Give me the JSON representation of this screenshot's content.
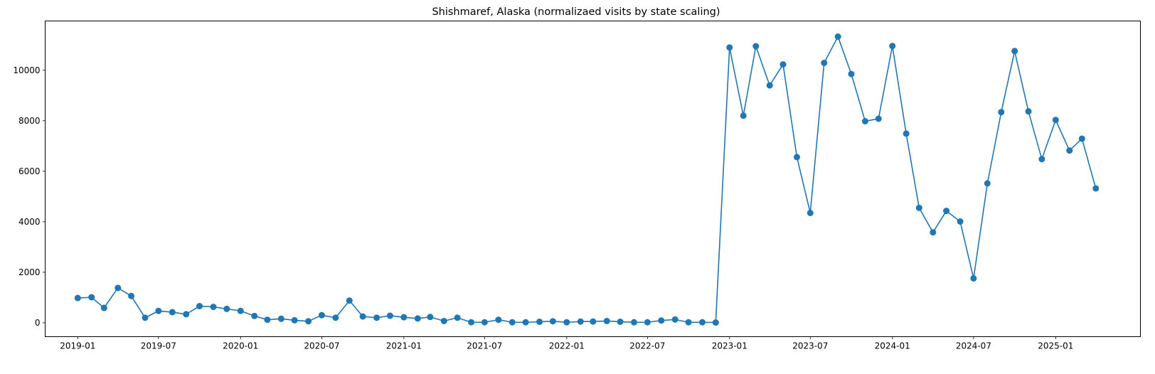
{
  "chart_data": {
    "type": "line",
    "title": "Shishmaref, Alaska (normalizaed visits by state scaling)",
    "xlabel": "",
    "ylabel": "",
    "x_ticks": [
      "2019-01",
      "2019-07",
      "2020-01",
      "2020-07",
      "2021-01",
      "2021-07",
      "2022-01",
      "2022-07",
      "2023-01",
      "2023-07",
      "2024-01",
      "2024-07",
      "2025-01"
    ],
    "y_ticks": [
      0,
      2000,
      4000,
      6000,
      8000,
      10000
    ],
    "ylim": [
      -550,
      11950
    ],
    "xlim": [
      "2018-10-20",
      "2025-07-10"
    ],
    "grid": false,
    "marker": "circle",
    "series": [
      {
        "color": "#1f77b4",
        "x": [
          "2019-01",
          "2019-02",
          "2019-03",
          "2019-04",
          "2019-05",
          "2019-06",
          "2019-07",
          "2019-08",
          "2019-09",
          "2019-10",
          "2019-11",
          "2019-12",
          "2020-01",
          "2020-02",
          "2020-03",
          "2020-04",
          "2020-05",
          "2020-06",
          "2020-07",
          "2020-08",
          "2020-09",
          "2020-10",
          "2020-11",
          "2020-12",
          "2021-01",
          "2021-02",
          "2021-03",
          "2021-04",
          "2021-05",
          "2021-06",
          "2021-07",
          "2021-08",
          "2021-09",
          "2021-10",
          "2021-11",
          "2021-12",
          "2022-01",
          "2022-02",
          "2022-03",
          "2022-04",
          "2022-05",
          "2022-06",
          "2022-07",
          "2022-08",
          "2022-09",
          "2022-10",
          "2022-11",
          "2022-12",
          "2023-01",
          "2023-02",
          "2023-03",
          "2023-04",
          "2023-05",
          "2023-06",
          "2023-07",
          "2023-08",
          "2023-09",
          "2023-10",
          "2023-11",
          "2023-12",
          "2024-01",
          "2024-02",
          "2024-03",
          "2024-04",
          "2024-05",
          "2024-06",
          "2024-07",
          "2024-08",
          "2024-09",
          "2024-10",
          "2024-11",
          "2024-12",
          "2025-01",
          "2025-02",
          "2025-03",
          "2025-04"
        ],
        "y": [
          980,
          1010,
          590,
          1380,
          1060,
          200,
          470,
          420,
          340,
          660,
          630,
          550,
          470,
          270,
          120,
          160,
          100,
          60,
          300,
          200,
          880,
          250,
          200,
          280,
          220,
          170,
          230,
          70,
          200,
          20,
          20,
          120,
          20,
          20,
          40,
          60,
          20,
          50,
          50,
          70,
          40,
          20,
          20,
          90,
          130,
          20,
          20,
          10,
          10900,
          8200,
          10950,
          9400,
          10230,
          6560,
          4350,
          10290,
          11330,
          9850,
          7980,
          8080,
          10960,
          7490,
          4550,
          3580,
          4430,
          4010,
          1760,
          5520,
          8340,
          10760,
          8370,
          6480,
          8030,
          6820,
          7290,
          5320
        ]
      }
    ]
  }
}
